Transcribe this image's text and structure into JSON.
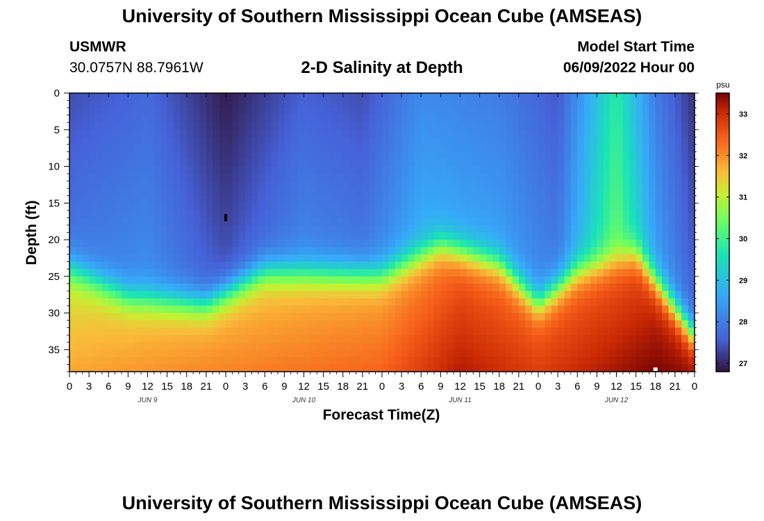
{
  "header": {
    "title": "University of Southern Mississippi Ocean Cube (AMSEAS)",
    "station": "USMWR",
    "coords": "30.0757N  88.7961W",
    "subtitle": "2-D Salinity at Depth",
    "model_start_label": "Model Start Time",
    "model_start_value": "06/09/2022 Hour 00"
  },
  "footer": {
    "title": "University of Southern Mississippi Ocean Cube (AMSEAS)"
  },
  "chart_data": {
    "type": "heatmap",
    "title": "2-D Salinity at Depth",
    "xlabel": "Forecast Time(Z)",
    "ylabel": "Depth (ft)",
    "x_unit": "forecast hours from model start",
    "xlim": [
      0,
      96
    ],
    "ylim": [
      0,
      38
    ],
    "y_inverted": true,
    "x_tick_labels": [
      "0",
      "3",
      "6",
      "9",
      "12",
      "15",
      "18",
      "21",
      "0",
      "3",
      "6",
      "9",
      "12",
      "15",
      "18",
      "21",
      "0",
      "3",
      "6",
      "9",
      "12",
      "15",
      "18",
      "21",
      "0",
      "3",
      "6",
      "9",
      "12",
      "15",
      "18",
      "21",
      "0"
    ],
    "x_tick_hours": [
      0,
      3,
      6,
      9,
      12,
      15,
      18,
      21,
      24,
      27,
      30,
      33,
      36,
      39,
      42,
      45,
      48,
      51,
      54,
      57,
      60,
      63,
      66,
      69,
      72,
      75,
      78,
      81,
      84,
      87,
      90,
      93,
      96
    ],
    "day_labels": [
      {
        "text": "JUN 9",
        "hour": 12
      },
      {
        "text": "JUN 10",
        "hour": 36
      },
      {
        "text": "JUN 11",
        "hour": 60
      },
      {
        "text": "JUN 12",
        "hour": 84
      }
    ],
    "y_ticks": [
      0,
      5,
      10,
      15,
      20,
      25,
      30,
      35
    ],
    "colorbar": {
      "unit": "psu",
      "min": 26.8,
      "max": 33.5,
      "ticks": [
        27,
        28,
        29,
        30,
        31,
        32,
        33
      ]
    },
    "halocline_depth_ft": [
      {
        "hour": 0,
        "depth": 23.5
      },
      {
        "hour": 9,
        "depth": 27.5
      },
      {
        "hour": 21,
        "depth": 28.5
      },
      {
        "hour": 30,
        "depth": 24.0
      },
      {
        "hour": 48,
        "depth": 24.5
      },
      {
        "hour": 57,
        "depth": 20.5
      },
      {
        "hour": 66,
        "depth": 23.0
      },
      {
        "hour": 72,
        "depth": 28.5
      },
      {
        "hour": 78,
        "depth": 24.0
      },
      {
        "hour": 87,
        "depth": 21.5
      },
      {
        "hour": 96,
        "depth": 33.0
      }
    ],
    "surface_salinity_psu": [
      {
        "hour": 0,
        "value": 27.4
      },
      {
        "hour": 12,
        "value": 27.7
      },
      {
        "hour": 24,
        "value": 26.9
      },
      {
        "hour": 36,
        "value": 27.6
      },
      {
        "hour": 45,
        "value": 27.4
      },
      {
        "hour": 54,
        "value": 28.2
      },
      {
        "hour": 66,
        "value": 28.0
      },
      {
        "hour": 75,
        "value": 27.5
      },
      {
        "hour": 84,
        "value": 29.8
      },
      {
        "hour": 90,
        "value": 28.0
      },
      {
        "hour": 96,
        "value": 27.1
      }
    ],
    "bottom_salinity_psu": [
      {
        "hour": 0,
        "value": 31.8
      },
      {
        "hour": 24,
        "value": 32.1
      },
      {
        "hour": 48,
        "value": 32.4
      },
      {
        "hour": 60,
        "value": 33.2
      },
      {
        "hour": 72,
        "value": 32.8
      },
      {
        "hour": 90,
        "value": 33.5
      },
      {
        "hour": 96,
        "value": 33.3
      }
    ],
    "annotations": [
      {
        "type": "min_marker",
        "hour": 24,
        "depth": 17
      },
      {
        "type": "max_marker",
        "hour": 90,
        "depth": 38
      }
    ]
  }
}
